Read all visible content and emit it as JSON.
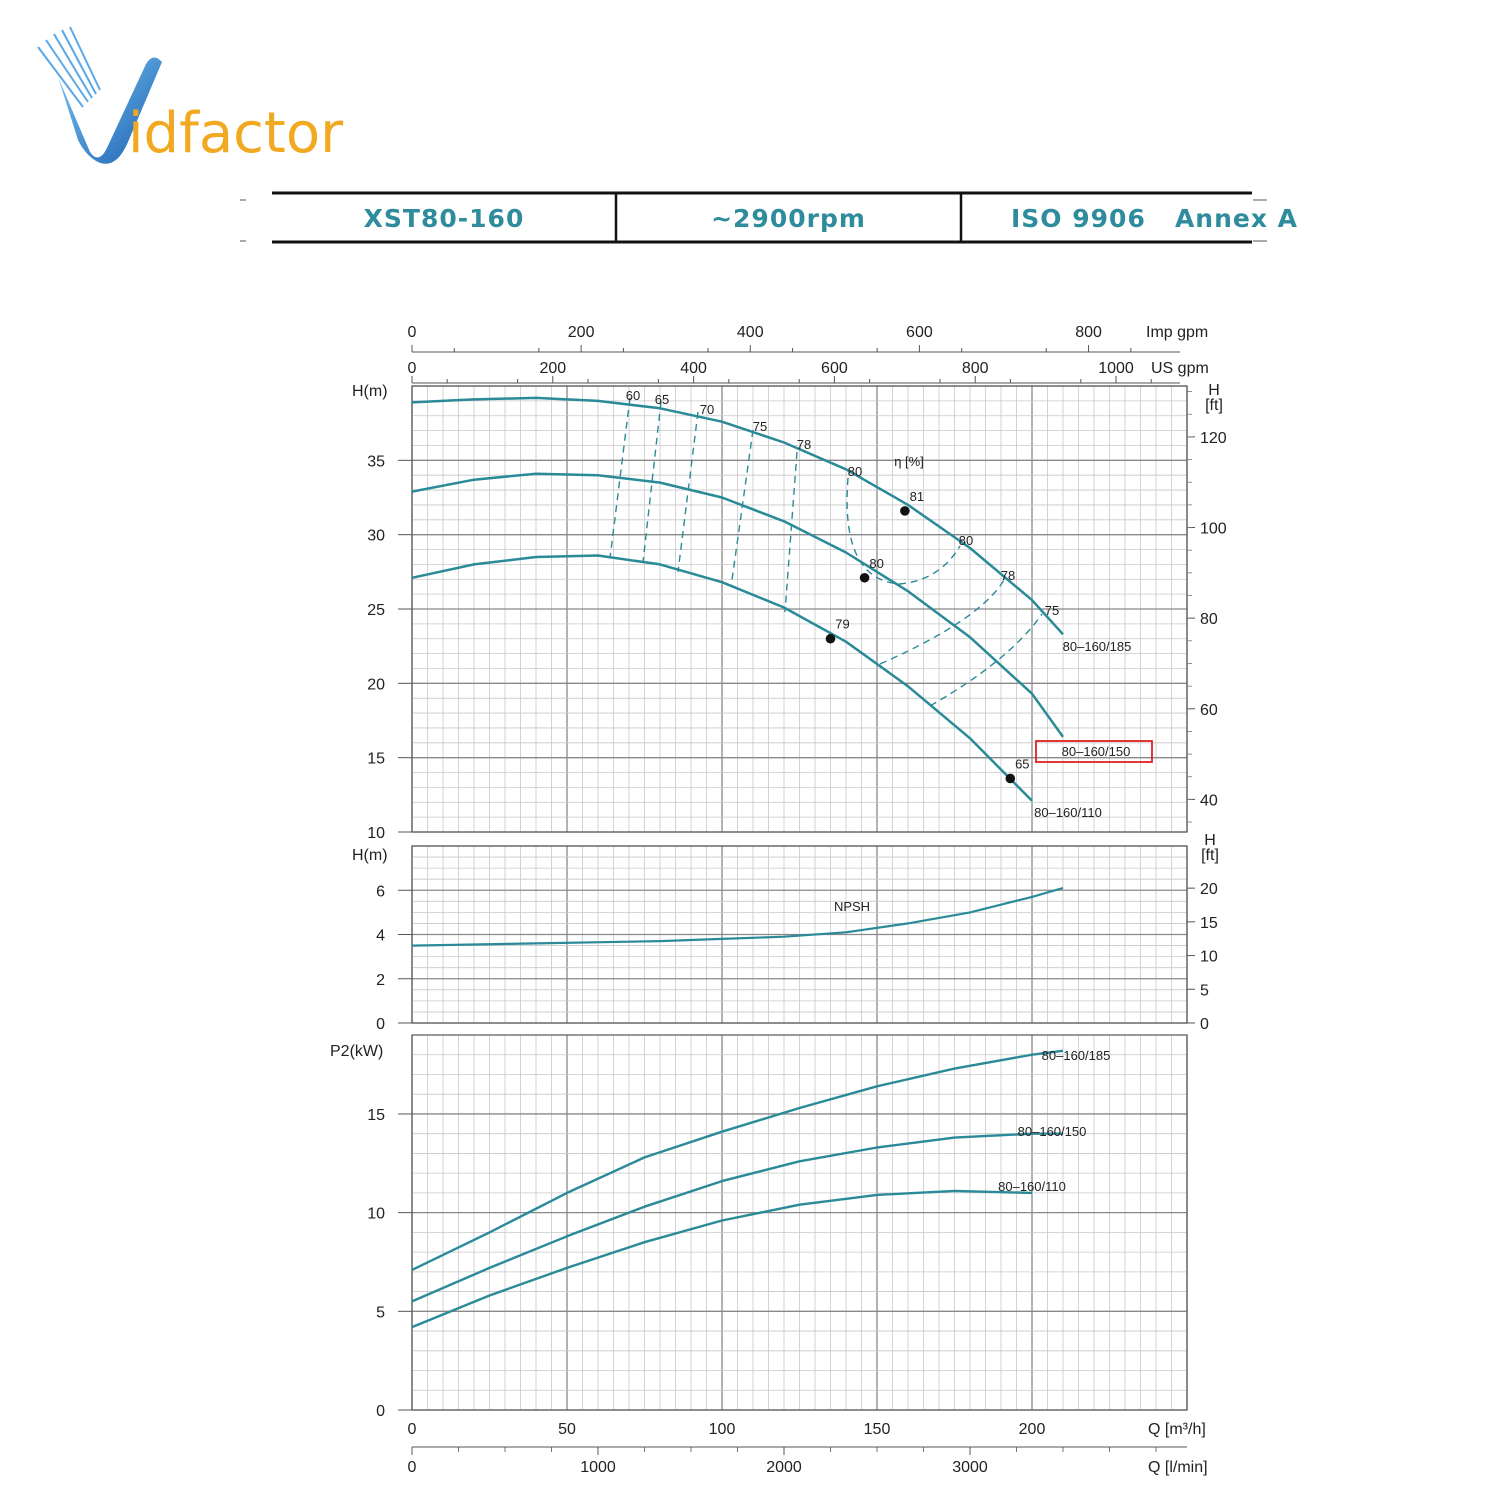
{
  "logo": {
    "text_v": "V",
    "text_rest": "idfactor"
  },
  "header": {
    "model": "XST80-160",
    "speed": "~2900rpm",
    "standard": "ISO 9906   Annex A"
  },
  "colors": {
    "curve": "#2a8a98",
    "grid_major": "#888888",
    "grid_minor": "#c8c8c8",
    "header_text": "#2f8c9c",
    "highlight": "#e02020"
  },
  "chart_data": {
    "type": "line",
    "x_units": {
      "q_m3h_label": "Q [m³/h]",
      "q_lmin_label": "Q [l/min]",
      "us_gpm_label": "US gpm",
      "imp_gpm_label": "Imp gpm",
      "q_m3h_ticks": [
        "0",
        "50",
        "100",
        "150",
        "200"
      ],
      "q_lmin_ticks": [
        "0",
        "1000",
        "2000",
        "3000"
      ],
      "us_gpm_ticks": [
        "0",
        "200",
        "400",
        "600",
        "800",
        "1000"
      ],
      "imp_gpm_ticks": [
        "0",
        "200",
        "400",
        "600",
        "800"
      ],
      "xlim": [
        0,
        250
      ]
    },
    "head": {
      "ylabel": "H(m)",
      "ylabel_ft": "H\n[ft]",
      "ylim": [
        10,
        40
      ],
      "y_ticks": [
        "10",
        "15",
        "20",
        "25",
        "30",
        "35"
      ],
      "ft_ticks": [
        "40",
        "60",
        "80",
        "100",
        "120"
      ],
      "efficiency_label": "η [%]",
      "series": [
        {
          "name": "80–160/185",
          "x": [
            0,
            20,
            40,
            60,
            80,
            100,
            120,
            140,
            160,
            180,
            200,
            210
          ],
          "y": [
            38.9,
            39.1,
            39.2,
            39.0,
            38.5,
            37.6,
            36.2,
            34.4,
            32.0,
            29.1,
            25.6,
            23.3
          ]
        },
        {
          "name": "80–160/150",
          "x": [
            0,
            20,
            40,
            60,
            80,
            100,
            120,
            140,
            160,
            180,
            200,
            210
          ],
          "y": [
            32.9,
            33.7,
            34.1,
            34.0,
            33.5,
            32.5,
            30.9,
            28.8,
            26.2,
            23.1,
            19.3,
            16.4
          ]
        },
        {
          "name": "80–160/110",
          "x": [
            0,
            20,
            40,
            60,
            80,
            100,
            120,
            140,
            160,
            180,
            200
          ],
          "y": [
            27.1,
            28.0,
            28.5,
            28.6,
            28.0,
            26.8,
            25.1,
            22.8,
            19.8,
            16.3,
            12.1
          ]
        }
      ],
      "efficiency_markers": [
        {
          "label": "81",
          "x": 159,
          "y": 31.6
        },
        {
          "label": "80",
          "x": 146,
          "y": 27.1
        },
        {
          "label": "79",
          "x": 135,
          "y": 23.0
        },
        {
          "label": "65",
          "x": 193,
          "y": 13.6
        }
      ],
      "efficiency_labels": [
        "60",
        "65",
        "70",
        "75",
        "78",
        "80",
        "80",
        "78",
        "75"
      ],
      "highlighted_series": "80–160/150"
    },
    "npsh": {
      "ylabel": "H(m)",
      "ylabel_ft": "H\n[ft]",
      "series_label": "NPSH",
      "ylim": [
        0,
        8
      ],
      "y_ticks": [
        "0",
        "2",
        "4",
        "6"
      ],
      "ft_ticks": [
        "0",
        "5",
        "10",
        "15",
        "20"
      ],
      "x": [
        0,
        40,
        80,
        100,
        120,
        140,
        160,
        180,
        200,
        210
      ],
      "y": [
        3.5,
        3.6,
        3.7,
        3.8,
        3.9,
        4.1,
        4.5,
        5.0,
        5.7,
        6.1
      ]
    },
    "power": {
      "ylabel": "P2(kW)",
      "ylim": [
        0,
        19
      ],
      "y_ticks": [
        "0",
        "5",
        "10",
        "15"
      ],
      "series": [
        {
          "name": "80–160/185",
          "x": [
            0,
            25,
            50,
            75,
            100,
            125,
            150,
            175,
            200,
            210
          ],
          "y": [
            7.1,
            9.0,
            11.0,
            12.8,
            14.1,
            15.3,
            16.4,
            17.3,
            18.0,
            18.2
          ]
        },
        {
          "name": "80–160/150",
          "x": [
            0,
            25,
            50,
            75,
            100,
            125,
            150,
            175,
            200,
            210
          ],
          "y": [
            5.5,
            7.2,
            8.8,
            10.3,
            11.6,
            12.6,
            13.3,
            13.8,
            14.0,
            14.0
          ]
        },
        {
          "name": "80–160/110",
          "x": [
            0,
            25,
            50,
            75,
            100,
            125,
            150,
            175,
            200
          ],
          "y": [
            4.2,
            5.8,
            7.2,
            8.5,
            9.6,
            10.4,
            10.9,
            11.1,
            11.0
          ]
        }
      ]
    }
  }
}
